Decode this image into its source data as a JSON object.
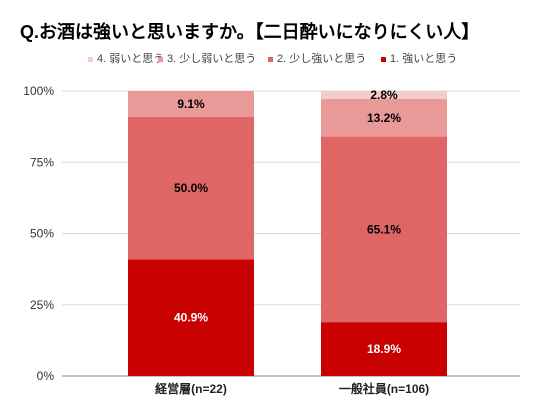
{
  "title": "Q.お酒は強いと思いますか。【二日酔いになりにくい人】",
  "colors": {
    "s1": "#c80000",
    "s2": "#e06666",
    "s3": "#ea9999",
    "s4": "#f4cccc"
  },
  "chart_data": {
    "type": "bar",
    "stacked": true,
    "categories": [
      "経営層(n=22)",
      "一般社員(n=106)"
    ],
    "series": [
      {
        "name": "1. 強いと思う",
        "values": [
          40.9,
          18.9
        ],
        "labels": [
          "40.9%",
          "18.9%"
        ],
        "color": "#c80000",
        "label_color": "#ffffff"
      },
      {
        "name": "2. 少し強いと思う",
        "values": [
          50.0,
          65.1
        ],
        "labels": [
          "50.0%",
          "65.1%"
        ],
        "color": "#e06666",
        "label_color": "#000000"
      },
      {
        "name": "3. 少し弱いと思う",
        "values": [
          9.1,
          13.2
        ],
        "labels": [
          "9.1%",
          "13.2%"
        ],
        "color": "#ea9999",
        "label_color": "#000000"
      },
      {
        "name": "4. 弱いと思う",
        "values": [
          0,
          2.8
        ],
        "labels": [
          "",
          "2.8%"
        ],
        "color": "#f4cccc",
        "label_color": "#000000"
      }
    ],
    "legend_order": [
      3,
      2,
      1,
      0
    ],
    "ylim": [
      0,
      100
    ],
    "yticks": [
      0,
      25,
      50,
      75,
      100
    ],
    "ytick_labels": [
      "0%",
      "25%",
      "50%",
      "75%",
      "100%"
    ],
    "grid": true,
    "legend_position": "top"
  }
}
